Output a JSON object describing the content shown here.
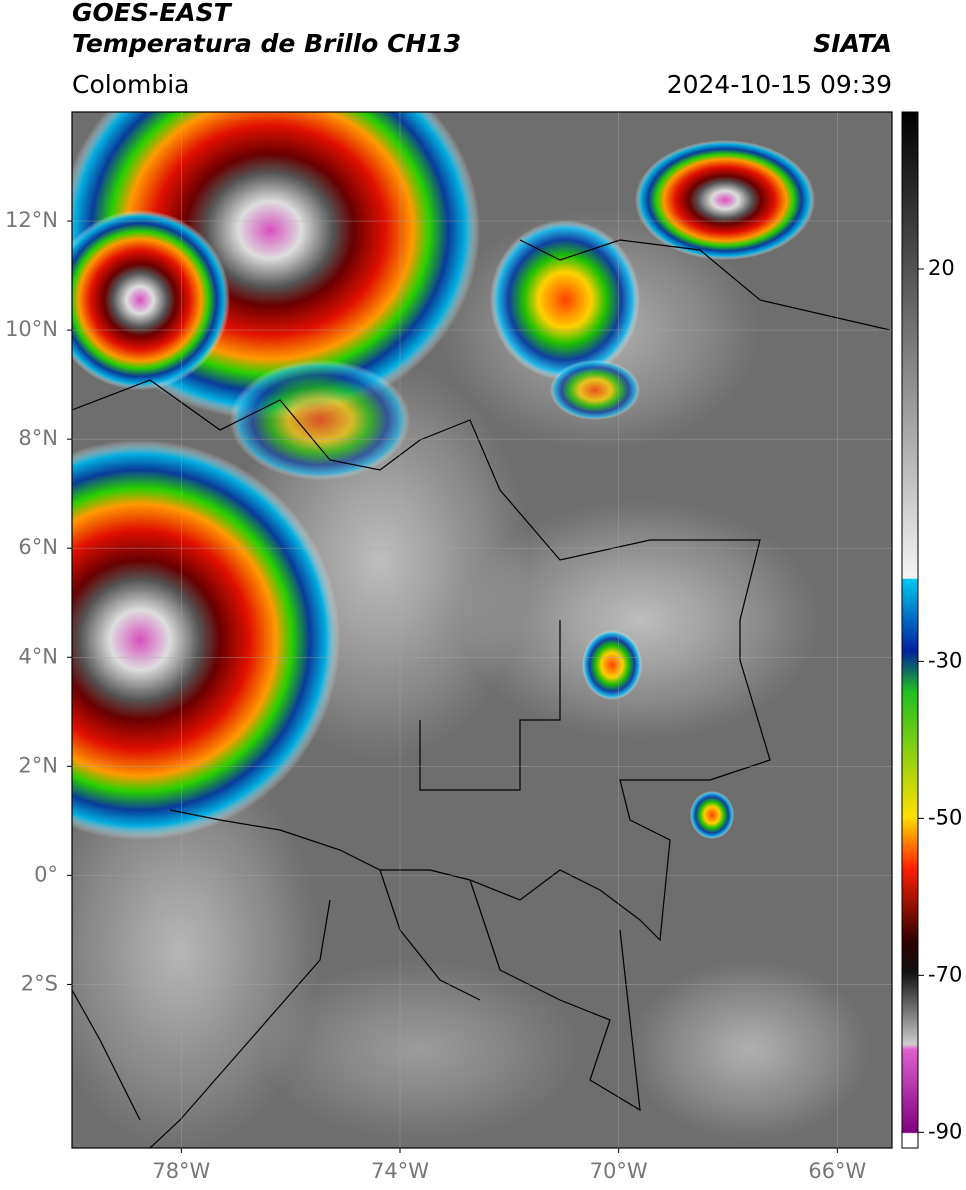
{
  "header": {
    "title": "GOES-EAST",
    "subtitle": "Temperatura de Brillo CH13",
    "source": "SIATA",
    "region": "Colombia",
    "timestamp": "2024-10-15 09:39"
  },
  "map": {
    "lonlim": [
      -80,
      -65
    ],
    "latlim": [
      -5,
      14
    ],
    "lonticks": [
      {
        "value": -78,
        "label": "78°W"
      },
      {
        "value": -74,
        "label": "74°W"
      },
      {
        "value": -70,
        "label": "70°W"
      },
      {
        "value": -66,
        "label": "66°W"
      }
    ],
    "latticks": [
      {
        "value": 12,
        "label": "12°N"
      },
      {
        "value": 10,
        "label": "10°N"
      },
      {
        "value": 8,
        "label": "8°N"
      },
      {
        "value": 6,
        "label": "6°N"
      },
      {
        "value": 4,
        "label": "4°N"
      },
      {
        "value": 2,
        "label": "2°N"
      },
      {
        "value": 0,
        "label": "0°"
      },
      {
        "value": -2,
        "label": "2°S"
      }
    ],
    "grid": true
  },
  "colorbar": {
    "lim": [
      -92,
      40
    ],
    "ticks": [
      20,
      -30,
      -50,
      -70,
      -90
    ]
  }
}
